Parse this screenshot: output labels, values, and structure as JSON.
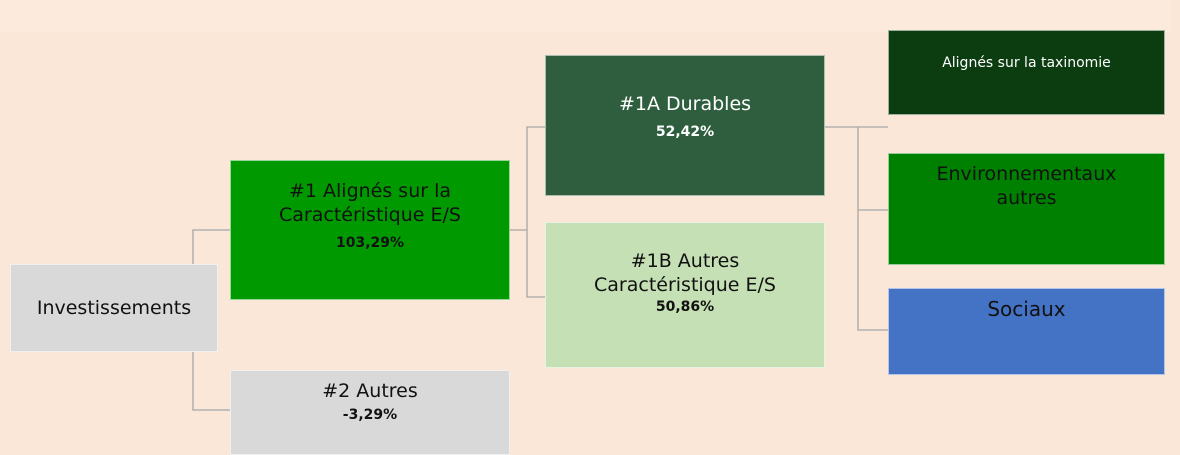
{
  "nodes": [
    {
      "label": "Investissements"
    },
    {
      "label": "#1 Alignés sur la Caractéristique E/S",
      "value": "103,29%"
    },
    {
      "label": "#2 Autres",
      "value": "-3,29%"
    },
    {
      "label": "#1A Durables",
      "value": "52,42%"
    },
    {
      "label": "#1B Autres Caractéristique E/S",
      "value": "50,86%"
    },
    {
      "label": "Alignés sur la taxinomie"
    },
    {
      "label": "Environnementaux autres"
    },
    {
      "label": "Sociaux"
    }
  ]
}
